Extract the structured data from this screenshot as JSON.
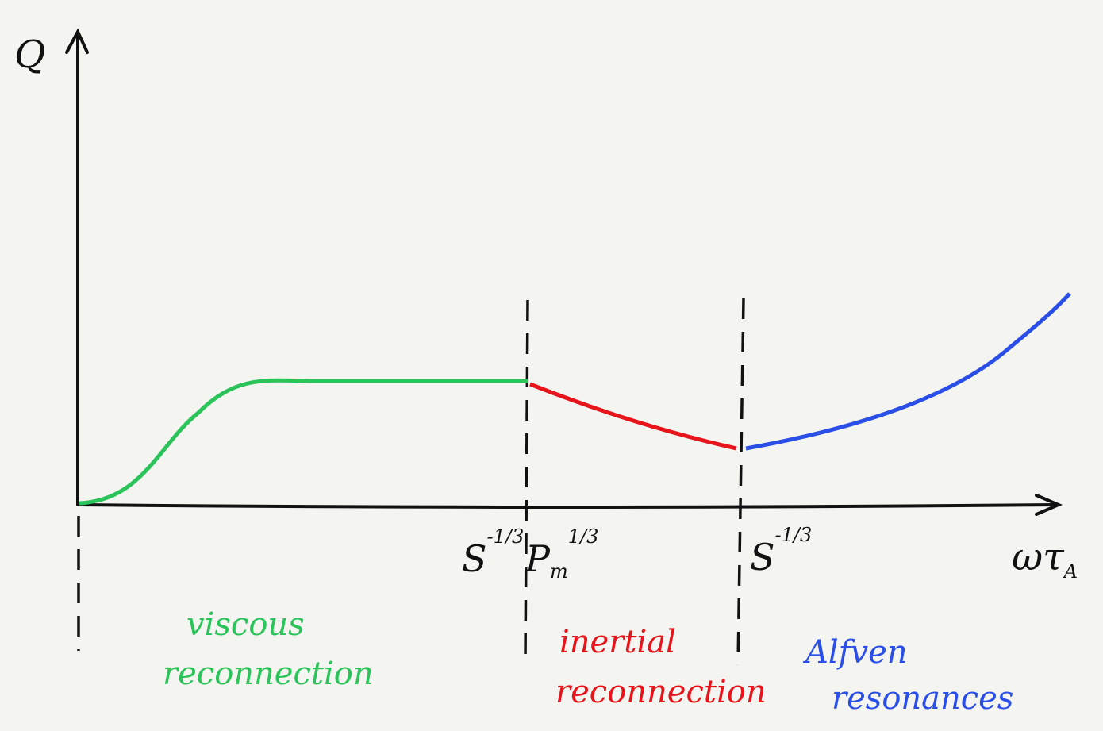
{
  "axes": {
    "y_label": "Q",
    "x_label": "ωτ",
    "x_label_sub": "A"
  },
  "ticks": [
    {
      "base": "S",
      "sup": "-1/3"
    },
    {
      "base": "P",
      "sub": "m",
      "sup": "1/3"
    },
    {
      "base": "S",
      "sup": "-1/3"
    }
  ],
  "regions": [
    {
      "line1": "viscous",
      "line2": "reconnection"
    },
    {
      "line1": "inertial",
      "line2": "reconnection"
    },
    {
      "line1": "Alfven",
      "line2": "resonances"
    }
  ]
}
